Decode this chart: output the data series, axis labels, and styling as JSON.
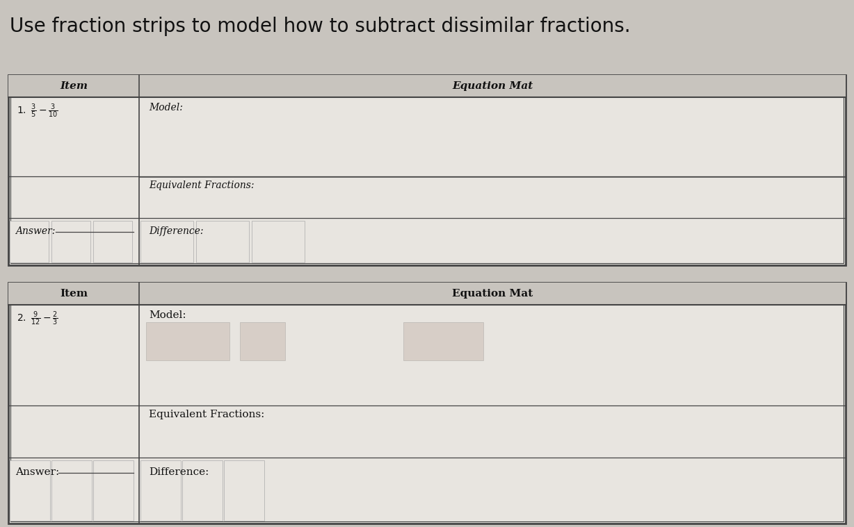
{
  "title": "Use fraction strips to model how to subtract dissimilar fractions.",
  "bg_color": "#c8c4be",
  "paper_color": "#e8e5e0",
  "header_bg": "#c8c4be",
  "line_color": "#444444",
  "text_color": "#111111",
  "title_fontsize": 20,
  "table1": {
    "header_item": "Item",
    "header_eq": "Equation Mat",
    "fraction_tex": "$1. \\ \\frac{3}{5} - \\frac{3}{10}$",
    "model_label": "Model:",
    "equiv_label": "Equivalent Fractions:",
    "answer_label": "Answer:",
    "diff_label": "Difference:"
  },
  "table2": {
    "header_item": "Item",
    "header_eq": "Equation Mat",
    "fraction_tex": "$2. \\ \\frac{9}{12} - \\frac{2}{3}$",
    "model_label": "Model:",
    "equiv_label": "Equivalent Fractions:",
    "answer_label": "Answer:",
    "diff_label": "Difference:"
  }
}
